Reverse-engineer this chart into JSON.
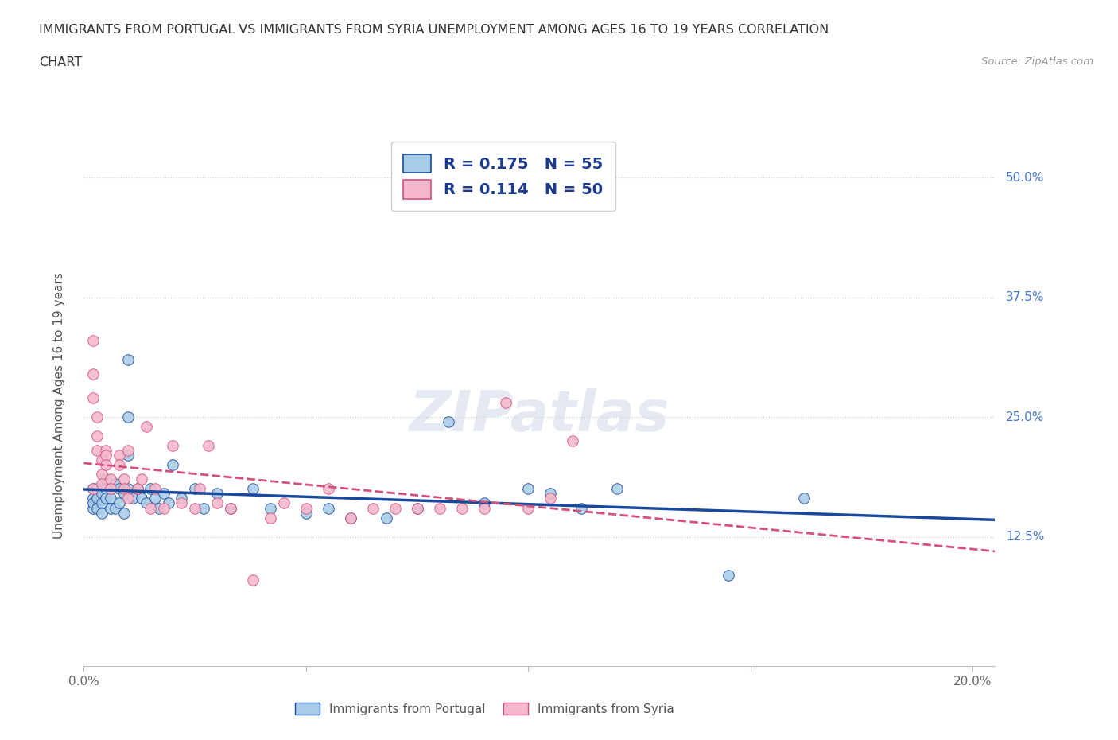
{
  "title_line1": "IMMIGRANTS FROM PORTUGAL VS IMMIGRANTS FROM SYRIA UNEMPLOYMENT AMONG AGES 16 TO 19 YEARS CORRELATION",
  "title_line2": "CHART",
  "source_text": "Source: ZipAtlas.com",
  "ylabel": "Unemployment Among Ages 16 to 19 years",
  "legend_labels": [
    "Immigrants from Portugal",
    "Immigrants from Syria"
  ],
  "r_portugal": 0.175,
  "n_portugal": 55,
  "r_syria": 0.114,
  "n_syria": 50,
  "xlim": [
    0.0,
    0.205
  ],
  "ylim": [
    -0.01,
    0.535
  ],
  "xticks": [
    0.0,
    0.05,
    0.1,
    0.15,
    0.2
  ],
  "xtick_labels": [
    "0.0%",
    "",
    "",
    "",
    "20.0%"
  ],
  "ytick_vals": [
    0.125,
    0.25,
    0.375,
    0.5
  ],
  "ytick_labels": [
    "12.5%",
    "25.0%",
    "37.5%",
    "50.0%"
  ],
  "color_portugal": "#a8cce8",
  "color_syria": "#f5b8cc",
  "trendline_portugal_color": "#1a4a9e",
  "trendline_syria_color": "#d4527a",
  "background_color": "#ffffff",
  "watermark": "ZIPatlas",
  "portugal_x": [
    0.002,
    0.002,
    0.002,
    0.002,
    0.003,
    0.003,
    0.003,
    0.004,
    0.004,
    0.004,
    0.005,
    0.005,
    0.005,
    0.006,
    0.006,
    0.007,
    0.007,
    0.008,
    0.008,
    0.009,
    0.009,
    0.01,
    0.01,
    0.01,
    0.01,
    0.011,
    0.012,
    0.013,
    0.014,
    0.015,
    0.016,
    0.017,
    0.018,
    0.019,
    0.02,
    0.022,
    0.025,
    0.027,
    0.03,
    0.033,
    0.038,
    0.042,
    0.05,
    0.055,
    0.06,
    0.068,
    0.075,
    0.082,
    0.09,
    0.1,
    0.105,
    0.112,
    0.12,
    0.145,
    0.162
  ],
  "portugal_y": [
    0.175,
    0.165,
    0.155,
    0.16,
    0.175,
    0.165,
    0.155,
    0.17,
    0.16,
    0.15,
    0.185,
    0.175,
    0.165,
    0.165,
    0.155,
    0.18,
    0.155,
    0.175,
    0.16,
    0.17,
    0.15,
    0.31,
    0.25,
    0.21,
    0.175,
    0.165,
    0.175,
    0.165,
    0.16,
    0.175,
    0.165,
    0.155,
    0.17,
    0.16,
    0.2,
    0.165,
    0.175,
    0.155,
    0.17,
    0.155,
    0.175,
    0.155,
    0.15,
    0.155,
    0.145,
    0.145,
    0.155,
    0.245,
    0.16,
    0.175,
    0.17,
    0.155,
    0.175,
    0.085,
    0.165
  ],
  "syria_x": [
    0.002,
    0.002,
    0.002,
    0.002,
    0.003,
    0.003,
    0.003,
    0.004,
    0.004,
    0.004,
    0.005,
    0.005,
    0.005,
    0.006,
    0.006,
    0.008,
    0.008,
    0.009,
    0.009,
    0.01,
    0.01,
    0.012,
    0.013,
    0.014,
    0.015,
    0.016,
    0.018,
    0.02,
    0.022,
    0.025,
    0.026,
    0.028,
    0.03,
    0.033,
    0.038,
    0.042,
    0.045,
    0.05,
    0.055,
    0.06,
    0.065,
    0.07,
    0.075,
    0.08,
    0.085,
    0.09,
    0.095,
    0.1,
    0.105,
    0.11
  ],
  "syria_y": [
    0.175,
    0.33,
    0.295,
    0.27,
    0.25,
    0.23,
    0.215,
    0.205,
    0.19,
    0.18,
    0.215,
    0.21,
    0.2,
    0.185,
    0.175,
    0.21,
    0.2,
    0.185,
    0.175,
    0.215,
    0.165,
    0.175,
    0.185,
    0.24,
    0.155,
    0.175,
    0.155,
    0.22,
    0.16,
    0.155,
    0.175,
    0.22,
    0.16,
    0.155,
    0.08,
    0.145,
    0.16,
    0.155,
    0.175,
    0.145,
    0.155,
    0.155,
    0.155,
    0.155,
    0.155,
    0.155,
    0.265,
    0.155,
    0.165,
    0.225
  ]
}
